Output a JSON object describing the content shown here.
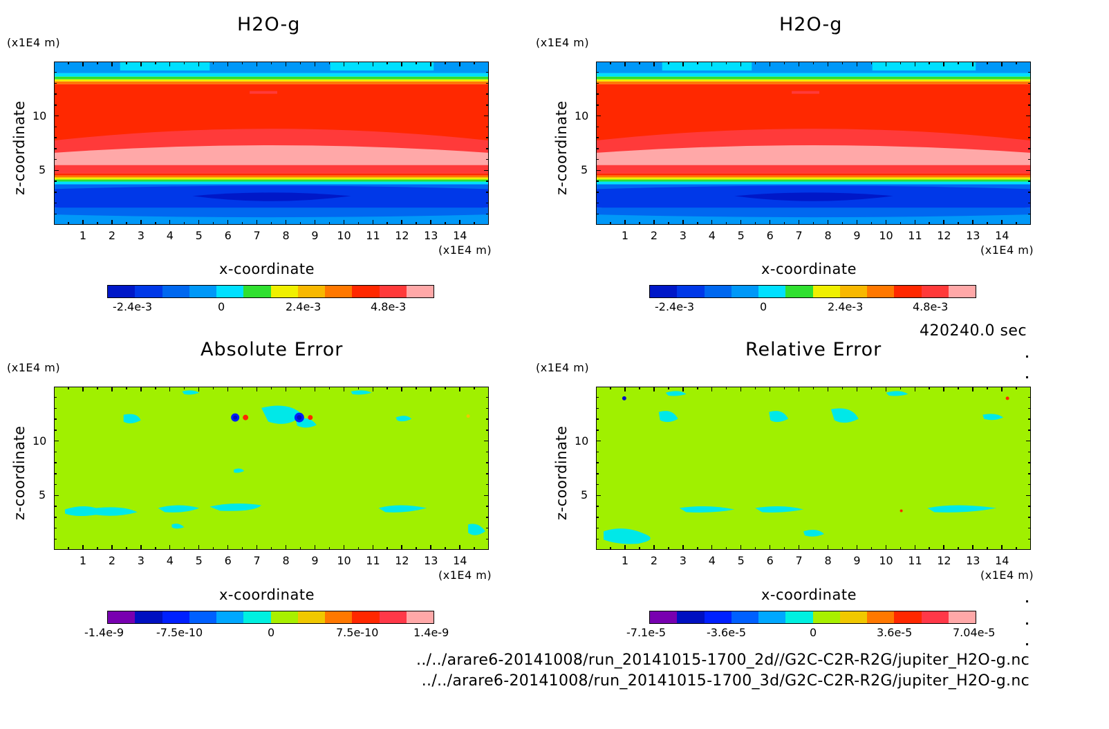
{
  "timestamp": "420240.0 sec",
  "file_paths": [
    "../../arare6-20141008/run_20141015-1700_2d//G2C-C2R-R2G/jupiter_H2O-g.nc",
    "../../arare6-20141008/run_20141015-1700_3d/G2C-C2R-R2G/jupiter_H2O-g.nc"
  ],
  "colors": {
    "field_palette": [
      "#0018c8",
      "#0038e8",
      "#0068f0",
      "#0098f8",
      "#00e0ff",
      "#30e030",
      "#f0f000",
      "#f8b800",
      "#ff7800",
      "#ff2800",
      "#ff3a3a",
      "#ffa8a8"
    ],
    "error_palette": [
      "#7800b0",
      "#0010c0",
      "#0020ff",
      "#0060ff",
      "#00a8ff",
      "#00f0e0",
      "#a8f000",
      "#f0c800",
      "#ff7800",
      "#ff2800",
      "#ff3848",
      "#ffa8a8"
    ],
    "error_background": "#a0f000",
    "error_patch": "#00e8e8"
  },
  "chart_data": [
    {
      "type": "heatmap",
      "title": "H2O-g",
      "xlabel": "x-coordinate",
      "ylabel": "z-coordinate",
      "x_unit": "(x1E4 m)",
      "y_unit": "(x1E4 m)",
      "x_ticks": [
        "1",
        "2",
        "3",
        "4",
        "5",
        "6",
        "7",
        "8",
        "9",
        "10",
        "11",
        "12",
        "13",
        "14"
      ],
      "y_ticks": [
        "5",
        "10"
      ],
      "xlim": [
        0,
        15
      ],
      "ylim": [
        0,
        15
      ],
      "colorbar_ticks": [
        "-2.4e-3",
        "0",
        "2.4e-3",
        "4.8e-3"
      ],
      "colorbar_range": [
        -0.0036,
        0.006
      ],
      "bands": [
        {
          "z": [
            0,
            1.5
          ],
          "value": -0.003
        },
        {
          "z": [
            1.5,
            3.4
          ],
          "value": -0.0032
        },
        {
          "z": [
            3.4,
            4.3
          ],
          "value": 0
        },
        {
          "z": [
            4.3,
            5.3
          ],
          "value": 0.0045
        },
        {
          "z": [
            5.3,
            7.0
          ],
          "value": 0.0056
        },
        {
          "z": [
            7.0,
            8.0
          ],
          "value": 0.0048
        },
        {
          "z": [
            8.0,
            13.0
          ],
          "value": 0.0044
        },
        {
          "z": [
            13.0,
            14.0
          ],
          "value": 0.002
        },
        {
          "z": [
            14.0,
            15.0
          ],
          "value": -0.0018
        }
      ]
    },
    {
      "type": "heatmap",
      "title": "H2O-g",
      "xlabel": "x-coordinate",
      "ylabel": "z-coordinate",
      "x_unit": "(x1E4 m)",
      "y_unit": "(x1E4 m)",
      "x_ticks": [
        "1",
        "2",
        "3",
        "4",
        "5",
        "6",
        "7",
        "8",
        "9",
        "10",
        "11",
        "12",
        "13",
        "14"
      ],
      "y_ticks": [
        "5",
        "10"
      ],
      "xlim": [
        0,
        15
      ],
      "ylim": [
        0,
        15
      ],
      "colorbar_ticks": [
        "-2.4e-3",
        "0",
        "2.4e-3",
        "4.8e-3"
      ],
      "colorbar_range": [
        -0.0036,
        0.006
      ],
      "bands": [
        {
          "z": [
            0,
            1.5
          ],
          "value": -0.003
        },
        {
          "z": [
            1.5,
            3.4
          ],
          "value": -0.0032
        },
        {
          "z": [
            3.4,
            4.3
          ],
          "value": 0
        },
        {
          "z": [
            4.3,
            5.3
          ],
          "value": 0.0045
        },
        {
          "z": [
            5.3,
            7.0
          ],
          "value": 0.0056
        },
        {
          "z": [
            7.0,
            8.0
          ],
          "value": 0.0048
        },
        {
          "z": [
            8.0,
            13.0
          ],
          "value": 0.0044
        },
        {
          "z": [
            13.0,
            14.0
          ],
          "value": 0.002
        },
        {
          "z": [
            14.0,
            15.0
          ],
          "value": -0.0018
        }
      ]
    },
    {
      "type": "heatmap",
      "title": "Absolute Error",
      "xlabel": "x-coordinate",
      "ylabel": "z-coordinate",
      "x_unit": "(x1E4 m)",
      "y_unit": "(x1E4 m)",
      "x_ticks": [
        "1",
        "2",
        "3",
        "4",
        "5",
        "6",
        "7",
        "8",
        "9",
        "10",
        "11",
        "12",
        "13",
        "14"
      ],
      "y_ticks": [
        "5",
        "10"
      ],
      "xlim": [
        0,
        15
      ],
      "ylim": [
        0,
        15
      ],
      "colorbar_ticks": [
        "-1.4e-9",
        "-7.5e-10",
        "0",
        "7.5e-10",
        "1.4e-9"
      ],
      "colorbar_range": [
        -1.8e-09,
        1.8e-09
      ],
      "features": [
        {
          "x": 6.3,
          "z": 12.2,
          "value": -1.4e-09
        },
        {
          "x": 6.7,
          "z": 12.2,
          "value": 1e-09
        },
        {
          "x": 8.5,
          "z": 12.2,
          "value": -1.5e-09
        },
        {
          "x": 8.9,
          "z": 12.2,
          "value": 9e-10
        }
      ]
    },
    {
      "type": "heatmap",
      "title": "Relative Error",
      "xlabel": "x-coordinate",
      "ylabel": "z-coordinate",
      "x_unit": "(x1E4 m)",
      "y_unit": "(x1E4 m)",
      "x_ticks": [
        "1",
        "2",
        "3",
        "4",
        "5",
        "6",
        "7",
        "8",
        "9",
        "10",
        "11",
        "12",
        "13",
        "14"
      ],
      "y_ticks": [
        "5",
        "10"
      ],
      "xlim": [
        0,
        15
      ],
      "ylim": [
        0,
        15
      ],
      "colorbar_ticks": [
        "-7.1e-5",
        "-3.6e-5",
        "0",
        "3.6e-5",
        "7.04e-5"
      ],
      "colorbar_range": [
        -8.9e-05,
        8.9e-05
      ],
      "features": [
        {
          "x": 1.0,
          "z": 14.1,
          "value": -6e-05
        },
        {
          "x": 14.2,
          "z": 14.1,
          "value": 5.5e-05
        }
      ]
    }
  ]
}
